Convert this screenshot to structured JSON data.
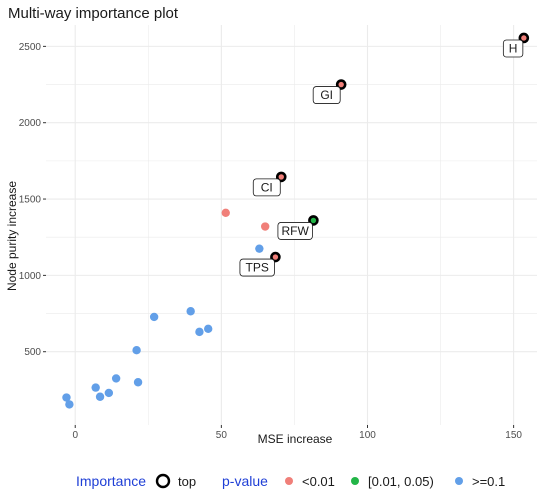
{
  "chart_data": {
    "type": "scatter",
    "title": "Multi-way importance plot",
    "xlabel": "MSE increase",
    "ylabel": "Node purity increase",
    "xlim": [
      -10,
      158
    ],
    "ylim": [
      20,
      2640
    ],
    "x_ticks": [
      0,
      50,
      100,
      150
    ],
    "y_ticks": [
      500,
      1000,
      1500,
      2000,
      2500
    ],
    "grid": true,
    "legend_position": "bottom",
    "legend": {
      "importance_title": "Importance",
      "importance_items": [
        "top"
      ],
      "pvalue_title": "p-value",
      "pvalue_items": [
        "<0.01",
        "[0.01, 0.05)",
        ">=0.1"
      ]
    },
    "colors": {
      "<0.01": "#f07f79",
      "[0.01, 0.05)": "#22b547",
      ">=0.1": "#629fe8",
      "legend_title": "#1f3fd6",
      "grid": "#ebebeb"
    },
    "points": [
      {
        "x": 153.5,
        "y": 2555,
        "pvalue": "<0.01",
        "top": true,
        "label": "H"
      },
      {
        "x": 91,
        "y": 2250,
        "pvalue": "<0.01",
        "top": true,
        "label": "GI"
      },
      {
        "x": 70.5,
        "y": 1645,
        "pvalue": "<0.01",
        "top": true,
        "label": "CI"
      },
      {
        "x": 81.5,
        "y": 1360,
        "pvalue": "[0.01, 0.05)",
        "top": true,
        "label": "RFW"
      },
      {
        "x": 68.5,
        "y": 1120,
        "pvalue": "<0.01",
        "top": true,
        "label": "TPS"
      },
      {
        "x": 51.5,
        "y": 1410,
        "pvalue": "<0.01",
        "top": false,
        "label": ""
      },
      {
        "x": 65,
        "y": 1320,
        "pvalue": "<0.01",
        "top": false,
        "label": ""
      },
      {
        "x": 63,
        "y": 1175,
        "pvalue": ">=0.1",
        "top": false,
        "label": ""
      },
      {
        "x": 39.5,
        "y": 765,
        "pvalue": ">=0.1",
        "top": false,
        "label": ""
      },
      {
        "x": 27,
        "y": 728,
        "pvalue": ">=0.1",
        "top": false,
        "label": ""
      },
      {
        "x": 45.5,
        "y": 650,
        "pvalue": ">=0.1",
        "top": false,
        "label": ""
      },
      {
        "x": 42.5,
        "y": 630,
        "pvalue": ">=0.1",
        "top": false,
        "label": ""
      },
      {
        "x": 21,
        "y": 510,
        "pvalue": ">=0.1",
        "top": false,
        "label": ""
      },
      {
        "x": 14,
        "y": 325,
        "pvalue": ">=0.1",
        "top": false,
        "label": ""
      },
      {
        "x": 21.5,
        "y": 300,
        "pvalue": ">=0.1",
        "top": false,
        "label": ""
      },
      {
        "x": 7,
        "y": 265,
        "pvalue": ">=0.1",
        "top": false,
        "label": ""
      },
      {
        "x": 11.5,
        "y": 230,
        "pvalue": ">=0.1",
        "top": false,
        "label": ""
      },
      {
        "x": 8.5,
        "y": 205,
        "pvalue": ">=0.1",
        "top": false,
        "label": ""
      },
      {
        "x": -3,
        "y": 200,
        "pvalue": ">=0.1",
        "top": false,
        "label": ""
      },
      {
        "x": -2,
        "y": 155,
        "pvalue": ">=0.1",
        "top": false,
        "label": ""
      }
    ]
  }
}
